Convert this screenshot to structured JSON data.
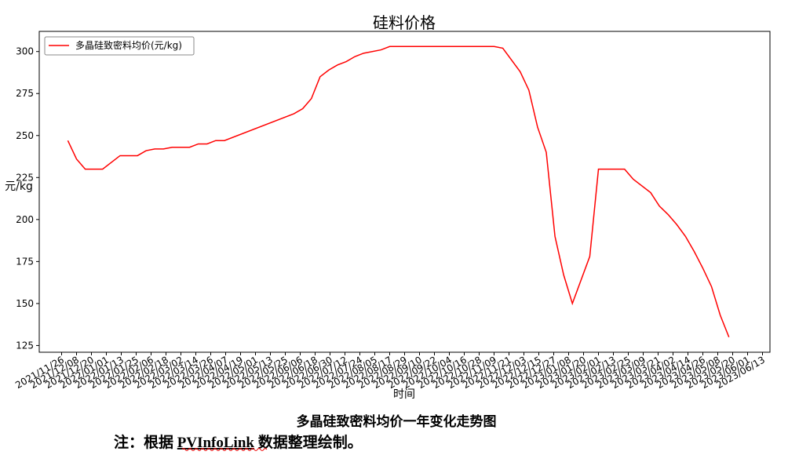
{
  "chart_data": {
    "type": "line",
    "title": "硅料价格",
    "xlabel": "时间",
    "ylabel": "元/kg",
    "x": [
      "2021/12/01",
      "2021/12/08",
      "2021/12/15",
      "2021/12/29",
      "2022/01/12",
      "2022/01/26",
      "2022/02/02",
      "2022/02/09",
      "2022/02/16",
      "2022/02/23",
      "2022/03/09",
      "2022/03/16",
      "2022/03/23",
      "2022/03/30",
      "2022/04/06",
      "2022/06/01",
      "2022/06/08",
      "2022/06/15",
      "2022/06/22",
      "2022/06/29",
      "2022/07/06",
      "2022/07/13",
      "2022/07/20",
      "2022/07/27",
      "2022/08/10",
      "2022/08/17",
      "2022/11/09",
      "2022/11/16",
      "2022/11/30",
      "2022/12/07",
      "2022/12/14",
      "2022/12/21",
      "2022/12/28",
      "2023/01/04",
      "2023/01/11",
      "2023/01/25",
      "2023/02/01",
      "2023/02/22",
      "2023/03/01",
      "2023/03/15",
      "2023/03/22",
      "2023/03/29",
      "2023/04/05",
      "2023/04/12",
      "2023/04/19",
      "2023/04/26",
      "2023/05/03",
      "2023/05/10",
      "2023/05/17"
    ],
    "series": [
      {
        "name": "多晶硅致密料均价(元/kg)",
        "color": "#ff0000",
        "values": [
          247,
          236,
          230,
          230,
          238,
          238,
          241,
          242,
          242,
          243,
          243,
          245,
          245,
          247,
          247,
          263,
          266,
          272,
          285,
          289,
          292,
          294,
          297,
          299,
          301,
          303,
          303,
          302,
          288,
          277,
          255,
          240,
          190,
          167,
          150,
          178,
          230,
          230,
          224,
          216,
          208,
          203,
          197,
          190,
          181,
          171,
          160,
          143,
          130
        ]
      }
    ],
    "xlim": [
      "2021/11/08",
      "2023/06/19"
    ],
    "xticks": [
      "2021/11/26",
      "2021/12/08",
      "2021/12/20",
      "2022/01/01",
      "2022/01/13",
      "2022/01/25",
      "2022/02/06",
      "2022/02/18",
      "2022/03/02",
      "2022/03/14",
      "2022/03/26",
      "2022/04/07",
      "2022/04/19",
      "2022/05/01",
      "2022/05/13",
      "2022/05/25",
      "2022/06/06",
      "2022/06/18",
      "2022/06/30",
      "2022/07/12",
      "2022/07/24",
      "2022/08/05",
      "2022/08/17",
      "2022/08/29",
      "2022/09/10",
      "2022/09/22",
      "2022/10/04",
      "2022/10/16",
      "2022/10/28",
      "2022/11/09",
      "2022/11/21",
      "2022/12/03",
      "2022/12/15",
      "2022/12/27",
      "2023/01/08",
      "2023/01/20",
      "2023/02/01",
      "2023/02/13",
      "2023/02/25",
      "2023/03/09",
      "2023/03/21",
      "2023/04/02",
      "2023/04/14",
      "2023/04/26",
      "2023/05/08",
      "2023/05/20",
      "2023/06/01",
      "2023/06/13"
    ],
    "ylim": [
      121,
      312
    ],
    "yticks": [
      125,
      150,
      175,
      200,
      225,
      250,
      275,
      300
    ],
    "grid": false,
    "legend": "upper left"
  },
  "document": {
    "caption": "多晶硅致密料均价一年变化走势图",
    "note_prefix": "注：根据",
    "note_source": "PVInfoLink",
    "note_suffix": "数据整理绘制。"
  }
}
